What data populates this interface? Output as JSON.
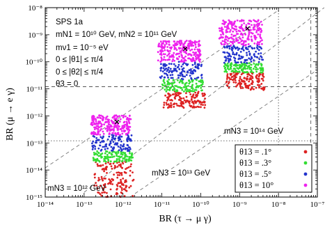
{
  "chart_data": {
    "type": "scatter",
    "title": "",
    "xlabel": "BR (τ → μ γ)",
    "ylabel": "BR (μ → e γ)",
    "x_scale": "log",
    "y_scale": "log",
    "xlim": [
      1e-14,
      1e-07
    ],
    "ylim": [
      1e-15,
      1e-08
    ],
    "x_ticks": [
      {
        "label": "10⁻¹⁴",
        "value": 1e-14
      },
      {
        "label": "10⁻¹³",
        "value": 1e-13
      },
      {
        "label": "10⁻¹²",
        "value": 1e-12
      },
      {
        "label": "10⁻¹¹",
        "value": 1e-11
      },
      {
        "label": "10⁻¹⁰",
        "value": 1e-10
      },
      {
        "label": "10⁻⁹",
        "value": 1e-09
      },
      {
        "label": "10⁻⁸",
        "value": 1e-08
      },
      {
        "label": "10⁻⁷",
        "value": 1e-07
      }
    ],
    "y_ticks": [
      {
        "label": "10⁻¹⁵",
        "value": 1e-15
      },
      {
        "label": "10⁻¹⁴",
        "value": 1e-14
      },
      {
        "label": "10⁻¹³",
        "value": 1e-13
      },
      {
        "label": "10⁻¹²",
        "value": 1e-12
      },
      {
        "label": "10⁻¹¹",
        "value": 1e-11
      },
      {
        "label": "10⁻¹⁰",
        "value": 1e-10
      },
      {
        "label": "10⁻⁹",
        "value": 1e-09
      },
      {
        "label": "10⁻⁸",
        "value": 1e-08
      }
    ],
    "annotations": [
      "SPS 1a",
      "mN1 = 10¹⁰ GeV, mN2 = 10¹¹ GeV",
      "mν1 = 10⁻⁵ eV",
      "0 ≤ |θ1| ≤ π/4",
      "0 ≤ |θ2| ≤ π/4",
      "θ3 = 0"
    ],
    "group_labels": [
      {
        "text": "mN3 = 10¹² GeV"
      },
      {
        "text": "mN3 = 10¹³ GeV"
      },
      {
        "text": "mN3 = 10¹⁴ GeV"
      }
    ],
    "legend": {
      "position": "bottom-right",
      "entries": [
        {
          "label": "θ13 = .1°",
          "color": "#dd2222"
        },
        {
          "label": "θ13 = .3°",
          "color": "#33dd33"
        },
        {
          "label": "θ13 = .5°",
          "color": "#2233cc"
        },
        {
          "label": "θ13 = 10°",
          "color": "#ee22ee"
        }
      ]
    },
    "reference_lines": [
      {
        "orientation": "horizontal",
        "style": "dashed",
        "y": 1.2e-11
      },
      {
        "orientation": "horizontal",
        "style": "dotted",
        "y": 1.2e-13
      },
      {
        "orientation": "vertical",
        "style": "dotted",
        "x": 1e-08
      },
      {
        "orientation": "vertical",
        "style": "dashed",
        "x": 6.8e-08
      }
    ],
    "diagonal_guides": [
      {
        "style": "dashed",
        "points": [
          [
            1e-14,
            1.2e-14
          ],
          [
            1e-08,
            8e-09
          ]
        ]
      },
      {
        "style": "dashed",
        "points": [
          [
            1e-13,
            1.5e-15
          ],
          [
            1.5e-07,
            1e-08
          ]
        ]
      },
      {
        "style": "dashed",
        "points": [
          [
            1.5e-12,
            1e-15
          ],
          [
            1e-07,
            5e-11
          ]
        ]
      }
    ],
    "groups": [
      {
        "centroid": [
          7e-13,
          6e-13
        ],
        "bands": [
          {
            "theta": "10°",
            "x": [
              1.5e-13,
              1.6e-12
            ],
            "y": [
              2e-13,
              1.1e-12
            ]
          },
          {
            "theta": ".5°",
            "x": [
              1.6e-13,
              1.7e-12
            ],
            "y": [
              5e-14,
              2e-13
            ]
          },
          {
            "theta": ".3°",
            "x": [
              1.7e-13,
              1.8e-12
            ],
            "y": [
              2e-14,
              5e-14
            ]
          },
          {
            "theta": ".1°",
            "x": [
              1.8e-13,
              1.9e-12
            ],
            "y": [
              1e-15,
              2e-14
            ]
          }
        ]
      },
      {
        "centroid": [
          4e-11,
          3e-10
        ],
        "bands": [
          {
            "theta": "10°",
            "x": [
              8e-12,
              1e-10
            ],
            "y": [
              1e-10,
              6e-10
            ]
          },
          {
            "theta": ".5°",
            "x": [
              9e-12,
              1.1e-10
            ],
            "y": [
              2.2e-11,
              1e-10
            ]
          },
          {
            "theta": ".3°",
            "x": [
              1e-11,
              1.2e-10
            ],
            "y": [
              8e-12,
              2.2e-11
            ]
          },
          {
            "theta": ".1°",
            "x": [
              1.1e-11,
              1.3e-10
            ],
            "y": [
              2e-12,
              8e-12
            ]
          }
        ]
      },
      {
        "centroid": [
          1.6e-09,
          1.7e-09
        ],
        "bands": [
          {
            "theta": "10°",
            "x": [
              3e-10,
              3.8e-09
            ],
            "y": [
              4e-10,
              3.5e-09
            ]
          },
          {
            "theta": ".5°",
            "x": [
              3.5e-10,
              4e-09
            ],
            "y": [
              9e-11,
              4e-10
            ]
          },
          {
            "theta": ".3°",
            "x": [
              4e-10,
              4.2e-09
            ],
            "y": [
              4e-11,
              9e-11
            ]
          },
          {
            "theta": ".1°",
            "x": [
              4.5e-10,
              4.4e-09
            ],
            "y": [
              9e-12,
              4e-11
            ]
          }
        ]
      }
    ],
    "grid": false
  }
}
